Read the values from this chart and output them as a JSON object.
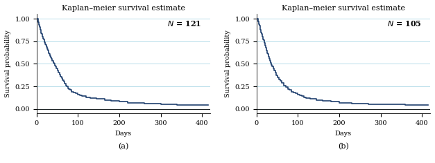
{
  "title": "Kaplan–meier survival estimate",
  "xlabel": "Days",
  "ylabel": "Survival probability",
  "xlim": [
    0,
    420
  ],
  "ylim": [
    -0.05,
    1.05
  ],
  "xticks": [
    0,
    100,
    200,
    300,
    400
  ],
  "yticks": [
    0.0,
    0.25,
    0.5,
    0.75,
    1.0
  ],
  "panel_a_label": "(a)",
  "panel_b_label": "(b)",
  "N_a": 121,
  "N_b": 105,
  "line_color": "#1f3f6e",
  "line_width": 1.2,
  "grid_color": "#add8e6",
  "grid_linewidth": 0.6,
  "title_fontsize": 8,
  "label_fontsize": 7,
  "tick_fontsize": 7,
  "annotation_fontsize": 8,
  "subfig_label_fontsize": 8,
  "background_color": "#ffffff",
  "curve_a_times": [
    0,
    3,
    4,
    5,
    6,
    7,
    8,
    9,
    10,
    11,
    12,
    13,
    14,
    15,
    16,
    17,
    18,
    19,
    20,
    21,
    22,
    23,
    24,
    25,
    26,
    27,
    28,
    29,
    30,
    32,
    34,
    35,
    37,
    38,
    40,
    42,
    44,
    46,
    48,
    50,
    53,
    55,
    57,
    60,
    63,
    65,
    68,
    70,
    73,
    75,
    78,
    80,
    85,
    90,
    95,
    100,
    105,
    110,
    115,
    120,
    125,
    130,
    135,
    140,
    145,
    150,
    155,
    160,
    165,
    170,
    175,
    180,
    185,
    190,
    195,
    200,
    210,
    220,
    230,
    240,
    250,
    260,
    270,
    280,
    290,
    300,
    310,
    320,
    330,
    340,
    350,
    360,
    370,
    380,
    390,
    400,
    415
  ],
  "curve_a_surv": [
    1.0,
    0.98,
    0.96,
    0.94,
    0.93,
    0.91,
    0.89,
    0.88,
    0.86,
    0.84,
    0.83,
    0.81,
    0.8,
    0.79,
    0.78,
    0.77,
    0.75,
    0.74,
    0.73,
    0.72,
    0.71,
    0.7,
    0.69,
    0.67,
    0.66,
    0.65,
    0.64,
    0.62,
    0.61,
    0.59,
    0.57,
    0.56,
    0.54,
    0.53,
    0.51,
    0.5,
    0.48,
    0.47,
    0.45,
    0.43,
    0.4,
    0.38,
    0.36,
    0.34,
    0.32,
    0.3,
    0.28,
    0.26,
    0.25,
    0.23,
    0.22,
    0.21,
    0.19,
    0.18,
    0.17,
    0.16,
    0.15,
    0.14,
    0.14,
    0.13,
    0.13,
    0.12,
    0.12,
    0.12,
    0.11,
    0.11,
    0.11,
    0.11,
    0.1,
    0.1,
    0.1,
    0.09,
    0.09,
    0.09,
    0.09,
    0.08,
    0.08,
    0.07,
    0.07,
    0.07,
    0.07,
    0.06,
    0.06,
    0.06,
    0.06,
    0.05,
    0.05,
    0.05,
    0.05,
    0.04,
    0.04,
    0.04,
    0.04,
    0.04,
    0.04,
    0.04,
    0.04
  ],
  "curve_b_times": [
    0,
    3,
    4,
    5,
    6,
    7,
    8,
    9,
    10,
    11,
    12,
    13,
    14,
    15,
    16,
    17,
    18,
    19,
    20,
    21,
    22,
    23,
    24,
    25,
    26,
    27,
    28,
    29,
    30,
    32,
    34,
    36,
    38,
    40,
    42,
    45,
    48,
    51,
    54,
    57,
    60,
    65,
    70,
    75,
    80,
    85,
    90,
    95,
    100,
    105,
    110,
    115,
    120,
    125,
    130,
    135,
    140,
    145,
    150,
    155,
    160,
    165,
    170,
    175,
    180,
    185,
    190,
    195,
    200,
    210,
    220,
    230,
    240,
    250,
    260,
    270,
    280,
    290,
    300,
    310,
    320,
    330,
    340,
    350,
    360,
    370,
    380,
    390,
    400,
    415
  ],
  "curve_b_surv": [
    1.0,
    0.98,
    0.97,
    0.95,
    0.94,
    0.92,
    0.9,
    0.88,
    0.87,
    0.85,
    0.83,
    0.82,
    0.8,
    0.79,
    0.77,
    0.76,
    0.74,
    0.73,
    0.71,
    0.7,
    0.68,
    0.67,
    0.65,
    0.64,
    0.62,
    0.61,
    0.59,
    0.58,
    0.56,
    0.53,
    0.51,
    0.49,
    0.47,
    0.45,
    0.43,
    0.4,
    0.37,
    0.35,
    0.33,
    0.31,
    0.29,
    0.26,
    0.24,
    0.22,
    0.21,
    0.19,
    0.18,
    0.17,
    0.16,
    0.15,
    0.14,
    0.13,
    0.12,
    0.12,
    0.11,
    0.11,
    0.11,
    0.1,
    0.1,
    0.1,
    0.09,
    0.09,
    0.09,
    0.09,
    0.08,
    0.08,
    0.08,
    0.08,
    0.07,
    0.07,
    0.07,
    0.06,
    0.06,
    0.06,
    0.06,
    0.05,
    0.05,
    0.05,
    0.05,
    0.05,
    0.05,
    0.05,
    0.05,
    0.05,
    0.04,
    0.04,
    0.04,
    0.04,
    0.04,
    0.04
  ]
}
